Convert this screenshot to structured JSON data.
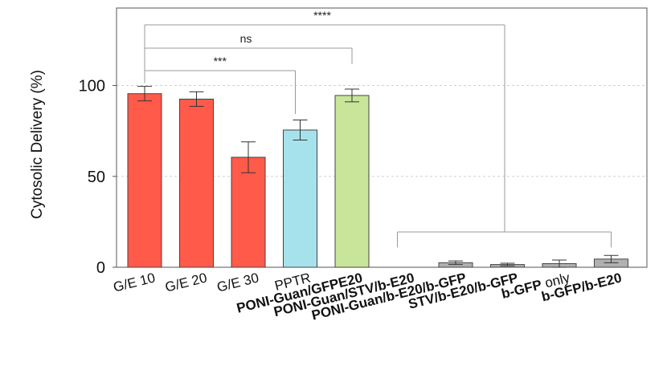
{
  "chart_data": {
    "type": "bar",
    "ylabel": "Cytosolic Delivery (%)",
    "ylim": [
      0,
      145
    ],
    "yticks": [
      0,
      50,
      100
    ],
    "grid": "dashed horizontal at 50 and 100",
    "categories": [
      "G/E 10",
      "G/E 20",
      "G/E 30",
      "PPTR",
      "PONI-Guan/GFPE20",
      "PONI-Guan/STV/b-E20",
      "PONI-Guan/b-E20/b-GFP",
      "STV/b-E20/b-GFP",
      "b-GFP only",
      "b-GFP/b-E20"
    ],
    "bold": [
      false,
      false,
      false,
      false,
      true,
      true,
      true,
      true,
      true,
      true
    ],
    "bold_suffix": [
      "",
      "",
      "",
      "",
      "",
      "",
      "",
      "",
      " only",
      ""
    ],
    "values": [
      95.5,
      92.5,
      60.5,
      75.5,
      94.5,
      0,
      2.5,
      1.5,
      2,
      4.5
    ],
    "errors": [
      4,
      4,
      8.5,
      5.5,
      3.5,
      0,
      1,
      0.7,
      2,
      2
    ],
    "colors": [
      "#ff5a4a",
      "#ff5a4a",
      "#ff5a4a",
      "#a6e2ec",
      "#c8e59a",
      "#b0b0b0",
      "#b0b0b0",
      "#b0b0b0",
      "#b0b0b0",
      "#b0b0b0"
    ],
    "significance": [
      {
        "label": "****",
        "from": 0,
        "to": 5
      },
      {
        "label": "ns",
        "from": 0,
        "to": 4
      },
      {
        "label": "***",
        "from": 0,
        "to": 3
      }
    ]
  }
}
